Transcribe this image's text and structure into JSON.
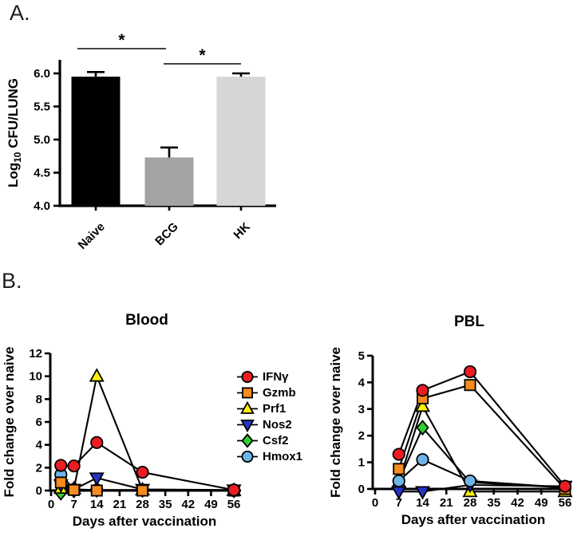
{
  "panel_a": {
    "label": "A."
  },
  "panel_b": {
    "label": "B."
  },
  "legend": {
    "items": [
      {
        "label": "IFNγ",
        "marker": "circle",
        "color": "#ed1c24"
      },
      {
        "label": "Gzmb",
        "marker": "square",
        "color": "#f68b1f"
      },
      {
        "label": "Prf1",
        "marker": "triangle-up",
        "color": "#fff101"
      },
      {
        "label": "Nos2",
        "marker": "triangle-down",
        "color": "#2734c9"
      },
      {
        "label": "Csf2",
        "marker": "diamond",
        "color": "#2ed12e"
      },
      {
        "label": "Hmox1",
        "marker": "circle",
        "color": "#6db4e8"
      }
    ]
  },
  "chart_data": [
    {
      "id": "cfu-lung",
      "type": "bar",
      "title": "",
      "ylabel": "Log10 CFU/LUNG",
      "ylabel_parts": {
        "prefix": "Log",
        "sub": "10",
        "suffix": " CFU/LUNG"
      },
      "categories": [
        "Naive",
        "BCG",
        "HK"
      ],
      "values": [
        5.95,
        4.73,
        5.95
      ],
      "errors_plus": [
        0.07,
        0.15,
        0.05
      ],
      "bar_colors": [
        "#000000",
        "#a3a3a3",
        "#d6d6d6"
      ],
      "ylim": [
        4.0,
        6.2
      ],
      "yticks": [
        4.0,
        4.5,
        5.0,
        5.5,
        6.0
      ],
      "significance": [
        {
          "groups": [
            "Naive",
            "BCG"
          ],
          "label": "*"
        },
        {
          "groups": [
            "BCG",
            "HK"
          ],
          "label": "*"
        }
      ]
    },
    {
      "id": "blood",
      "type": "line",
      "title": "Blood",
      "xlabel": "Days after vaccination",
      "ylabel": "Fold change over naive",
      "xticks": [
        0,
        7,
        14,
        21,
        28,
        35,
        42,
        49,
        56
      ],
      "yticks": [
        0,
        2,
        4,
        6,
        8,
        10,
        12
      ],
      "xlim": [
        0,
        58
      ],
      "ylim": [
        -0.6,
        12
      ],
      "grid": false,
      "series": [
        {
          "name": "IFNγ",
          "marker": "circle",
          "color": "#ed1c24",
          "x": [
            3,
            7,
            14,
            28,
            56
          ],
          "y": [
            2.2,
            2.15,
            4.2,
            1.6,
            0.05
          ]
        },
        {
          "name": "Gzmb",
          "marker": "square",
          "color": "#f68b1f",
          "x": [
            3,
            7,
            14,
            28,
            56
          ],
          "y": [
            0.7,
            0.05,
            0.0,
            0.0,
            0.0
          ]
        },
        {
          "name": "Prf1",
          "marker": "triangle-up",
          "color": "#fff101",
          "x": [
            3,
            7,
            14,
            28,
            56
          ],
          "y": [
            0.2,
            0.15,
            10.0,
            0.05,
            0.0
          ]
        },
        {
          "name": "Nos2",
          "marker": "triangle-down",
          "color": "#2734c9",
          "x": [
            3,
            7,
            14,
            28,
            56
          ],
          "y": [
            0.5,
            0.1,
            1.1,
            0.1,
            0.05
          ]
        },
        {
          "name": "Csf2",
          "marker": "diamond",
          "color": "#2ed12e",
          "x": [
            3,
            7,
            14,
            28,
            56
          ],
          "y": [
            -0.2,
            0.0,
            0.05,
            0.05,
            0.0
          ]
        },
        {
          "name": "Hmox1",
          "marker": "circle",
          "color": "#6db4e8",
          "x": [
            3,
            7,
            14,
            28,
            56
          ],
          "y": [
            1.4,
            0.1,
            0.05,
            0.05,
            0.0
          ]
        }
      ]
    },
    {
      "id": "pbl",
      "type": "line",
      "title": "PBL",
      "xlabel": "Days after vaccination",
      "ylabel": "Fold change over naive",
      "xticks": [
        0,
        7,
        14,
        21,
        28,
        35,
        42,
        49,
        56
      ],
      "yticks": [
        0,
        1,
        2,
        3,
        4,
        5
      ],
      "xlim": [
        0,
        58
      ],
      "ylim": [
        -0.35,
        5
      ],
      "grid": false,
      "series": [
        {
          "name": "IFNγ",
          "marker": "circle",
          "color": "#ed1c24",
          "x": [
            7,
            14,
            28,
            56
          ],
          "y": [
            1.3,
            3.7,
            4.4,
            0.1
          ]
        },
        {
          "name": "Gzmb",
          "marker": "square",
          "color": "#f68b1f",
          "x": [
            7,
            14,
            28,
            56
          ],
          "y": [
            0.75,
            3.4,
            3.9,
            0.0
          ]
        },
        {
          "name": "Prf1",
          "marker": "triangle-up",
          "color": "#fff101",
          "x": [
            7,
            14,
            28,
            56
          ],
          "y": [
            0.25,
            3.1,
            -0.1,
            -0.1
          ]
        },
        {
          "name": "Nos2",
          "marker": "triangle-down",
          "color": "#2734c9",
          "x": [
            7,
            14,
            28,
            56
          ],
          "y": [
            -0.1,
            -0.1,
            0.15,
            0.1
          ]
        },
        {
          "name": "Csf2",
          "marker": "diamond",
          "color": "#2ed12e",
          "x": [
            7,
            14,
            28,
            56
          ],
          "y": [
            0.3,
            2.3,
            0.25,
            0.05
          ]
        },
        {
          "name": "Hmox1",
          "marker": "circle",
          "color": "#6db4e8",
          "x": [
            7,
            14,
            28,
            56
          ],
          "y": [
            0.3,
            1.1,
            0.3,
            0.05
          ]
        }
      ]
    }
  ]
}
